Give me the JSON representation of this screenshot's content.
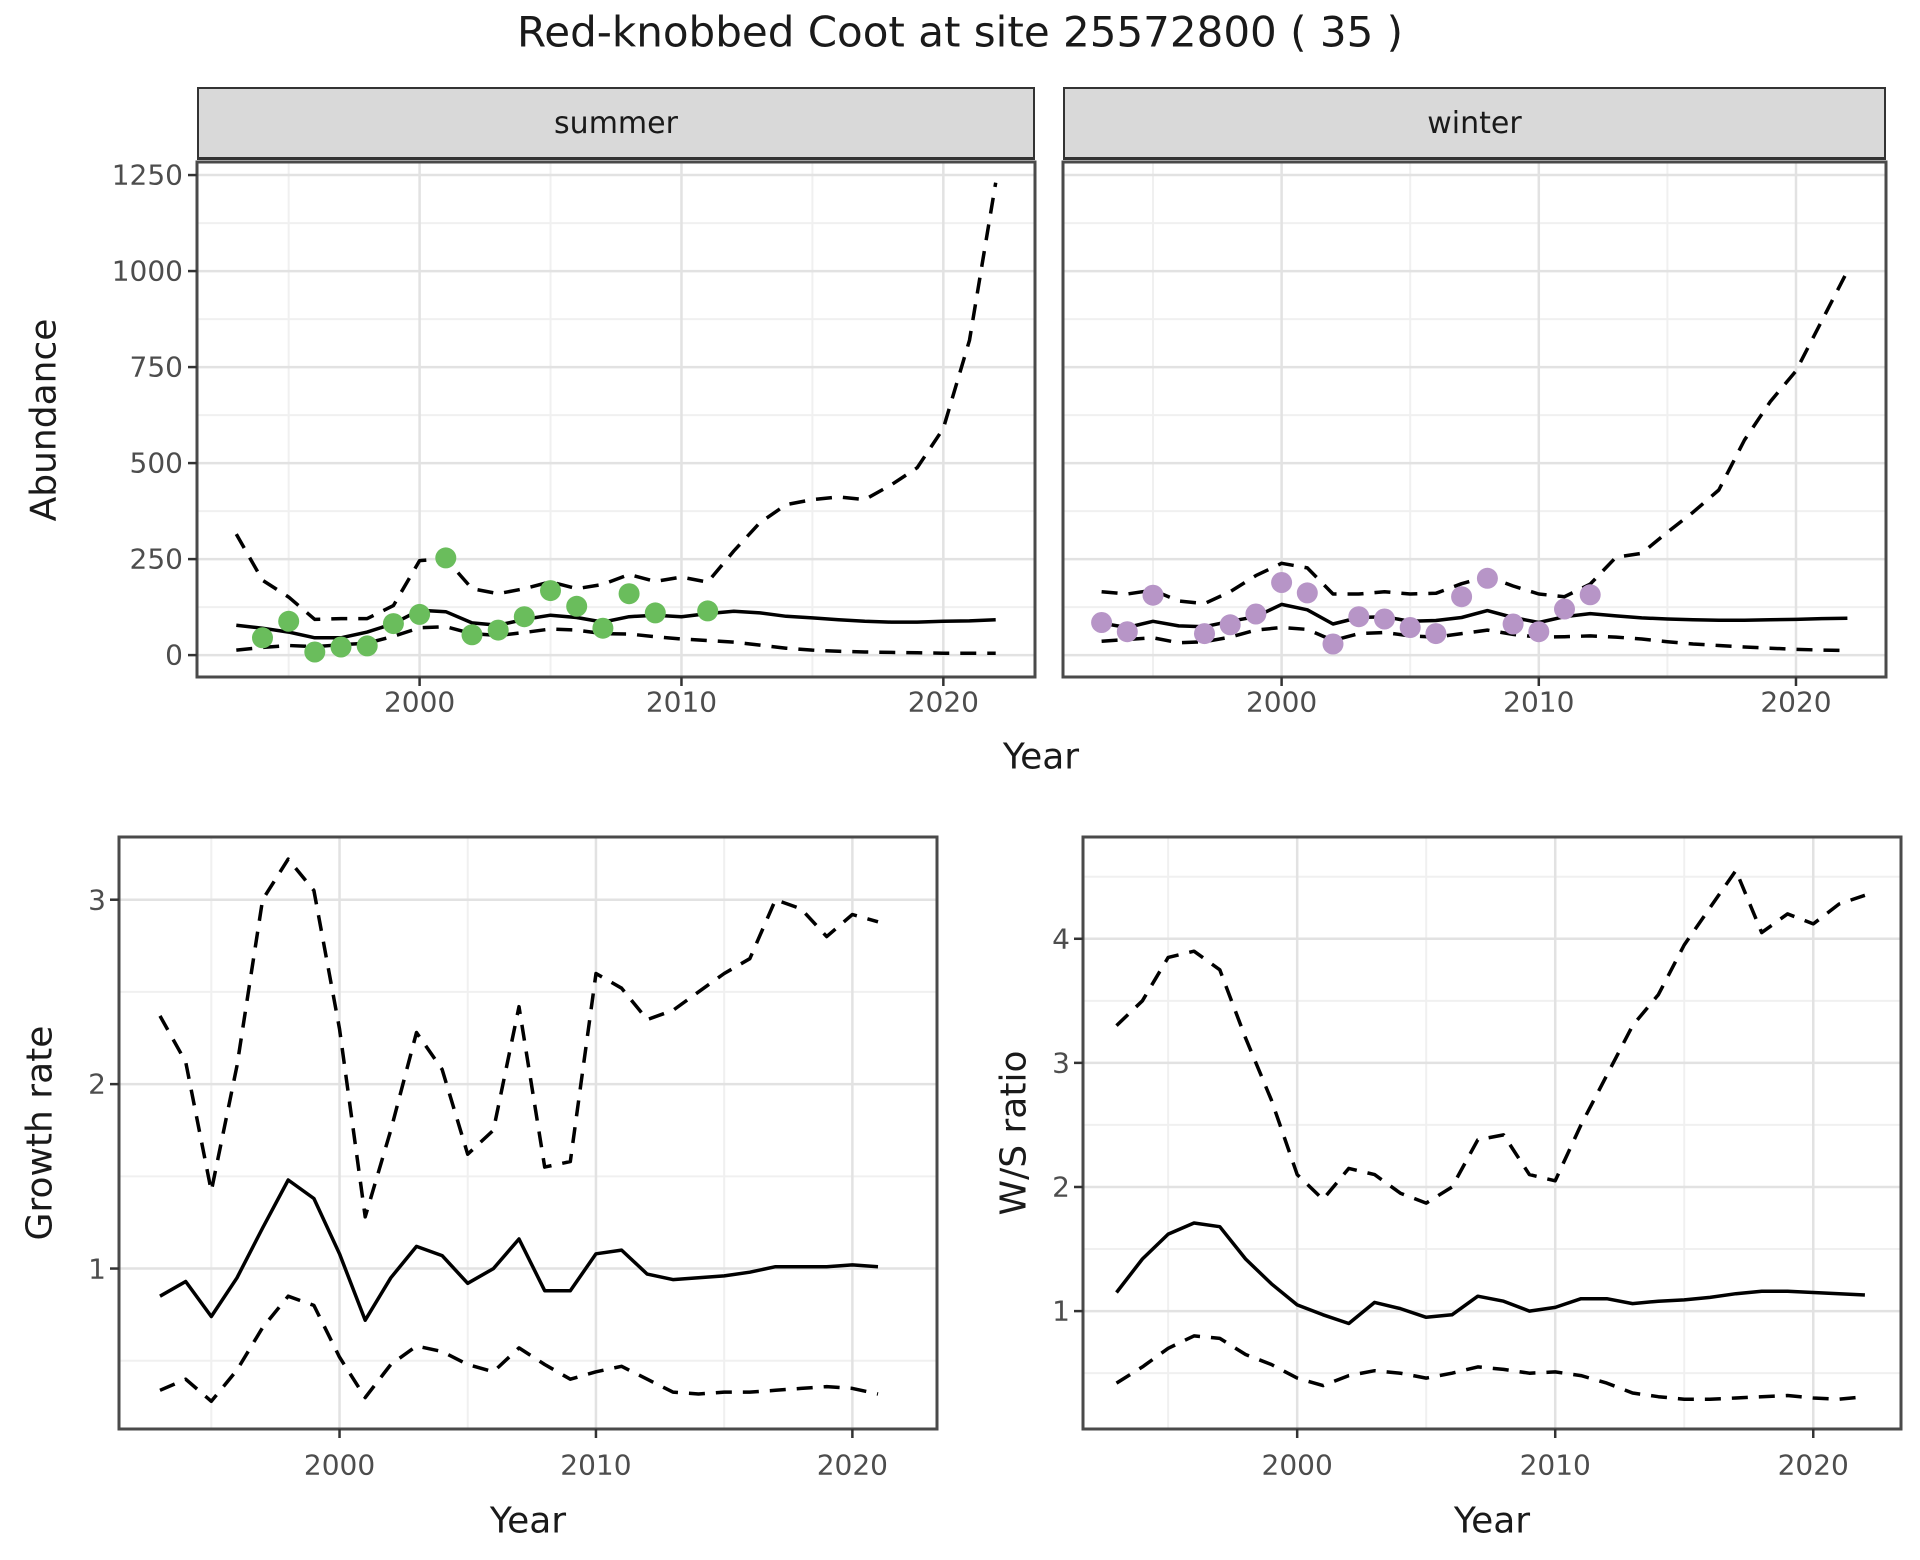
{
  "title": "Red-knobbed Coot at site 25572800 ( 35 )",
  "labels": {
    "year": "Year",
    "abundance": "Abundance",
    "growth": "Growth rate",
    "ws": "W/S ratio"
  },
  "facets": [
    "summer",
    "winter"
  ],
  "colors": {
    "summer_points": "#6ABD5C",
    "winter_points": "#B795C7",
    "line": "#000000",
    "strip_fill": "#D9D9D9",
    "grid_major": "#E2E2E2",
    "grid_minor": "#F0F0F0",
    "panel_border": "#4A4A4A",
    "tick_text": "#4D4D4D",
    "title_text": "#1A1A1A"
  },
  "chart_data": [
    {
      "id": "abundance-summer",
      "type": "line",
      "facet": "summer",
      "ylabel": "Abundance",
      "xlabel": "Year",
      "xlim": [
        1991.5,
        2023.5
      ],
      "ylim": [
        -57,
        1284
      ],
      "xticks": [
        2000,
        2010,
        2020
      ],
      "xticks_minor": [
        1995,
        2005,
        2015
      ],
      "yticks": [
        0,
        250,
        500,
        750,
        1000,
        1250
      ],
      "yticks_minor": [
        125,
        375,
        625,
        875,
        1125
      ],
      "x": [
        1993,
        1994,
        1995,
        1996,
        1997,
        1998,
        1999,
        2000,
        2001,
        2002,
        2003,
        2004,
        2005,
        2006,
        2007,
        2008,
        2009,
        2010,
        2011,
        2012,
        2013,
        2014,
        2015,
        2016,
        2017,
        2018,
        2019,
        2020,
        2021,
        2022
      ],
      "series": [
        {
          "name": "median",
          "style": "solid",
          "values": [
            78,
            70,
            60,
            45,
            45,
            60,
            82,
            117,
            113,
            84,
            78,
            93,
            104,
            98,
            86,
            100,
            104,
            100,
            108,
            114,
            110,
            101,
            97,
            92,
            88,
            86,
            86,
            88,
            89,
            92
          ]
        },
        {
          "name": "upper_ci",
          "style": "dashed",
          "values": [
            315,
            195,
            151,
            93,
            95,
            95,
            129,
            246,
            251,
            173,
            160,
            173,
            191,
            173,
            184,
            210,
            192,
            203,
            190,
            271,
            345,
            392,
            405,
            412,
            405,
            443,
            488,
            590,
            820,
            1230
          ]
        },
        {
          "name": "lower_ci",
          "style": "dashed",
          "values": [
            13,
            20,
            25,
            22,
            27,
            31,
            49,
            71,
            74,
            56,
            51,
            59,
            68,
            65,
            56,
            55,
            48,
            42,
            38,
            34,
            26,
            18,
            13,
            10,
            8,
            7,
            6,
            5,
            5,
            5
          ]
        }
      ],
      "points": {
        "color_key": "summer_points",
        "x": [
          1994,
          1995,
          1996,
          1997,
          1998,
          1999,
          2000,
          2001,
          2002,
          2003,
          2004,
          2005,
          2006,
          2007,
          2008,
          2009,
          2011
        ],
        "y": [
          45,
          88,
          8,
          21,
          24,
          82,
          106,
          253,
          53,
          65,
          100,
          168,
          127,
          70,
          160,
          110,
          115
        ]
      }
    },
    {
      "id": "abundance-winter",
      "type": "line",
      "facet": "winter",
      "ylabel": "Abundance",
      "xlabel": "Year",
      "xlim": [
        1991.5,
        2023.5
      ],
      "ylim": [
        -57,
        1284
      ],
      "xticks": [
        2000,
        2010,
        2020
      ],
      "xticks_minor": [
        1995,
        2005,
        2015
      ],
      "yticks": [
        0,
        250,
        500,
        750,
        1000,
        1250
      ],
      "yticks_minor": [
        125,
        375,
        625,
        875,
        1125
      ],
      "x": [
        1993,
        1994,
        1995,
        1996,
        1997,
        1998,
        1999,
        2000,
        2001,
        2002,
        2003,
        2004,
        2005,
        2006,
        2007,
        2008,
        2009,
        2010,
        2011,
        2012,
        2013,
        2014,
        2015,
        2016,
        2017,
        2018,
        2019,
        2020,
        2021,
        2022
      ],
      "series": [
        {
          "name": "median",
          "style": "solid",
          "values": [
            83,
            72,
            88,
            76,
            74,
            88,
            100,
            132,
            118,
            81,
            98,
            100,
            88,
            90,
            98,
            116,
            98,
            85,
            100,
            108,
            102,
            97,
            94,
            92,
            91,
            91,
            92,
            93,
            95,
            96
          ]
        },
        {
          "name": "upper_ci",
          "style": "dashed",
          "values": [
            165,
            159,
            169,
            141,
            134,
            165,
            207,
            239,
            227,
            159,
            159,
            165,
            159,
            161,
            186,
            205,
            180,
            159,
            152,
            185,
            255,
            265,
            320,
            372,
            430,
            560,
            660,
            740,
            870,
            1000
          ]
        },
        {
          "name": "lower_ci",
          "style": "dashed",
          "values": [
            36,
            41,
            45,
            32,
            35,
            47,
            65,
            72,
            67,
            38,
            56,
            59,
            50,
            47,
            56,
            65,
            54,
            47,
            48,
            50,
            47,
            42,
            35,
            29,
            25,
            21,
            18,
            15,
            13,
            12
          ]
        }
      ],
      "points": {
        "color_key": "winter_points",
        "x": [
          1993,
          1994,
          1995,
          1997,
          1998,
          1999,
          2000,
          2001,
          2002,
          2003,
          2004,
          2005,
          2006,
          2007,
          2008,
          2009,
          2010,
          2011,
          2012
        ],
        "y": [
          85,
          61,
          156,
          56,
          79,
          107,
          189,
          162,
          29,
          100,
          94,
          72,
          56,
          152,
          200,
          81,
          61,
          120,
          157
        ]
      }
    },
    {
      "id": "growth-rate",
      "type": "line",
      "facet": null,
      "ylabel": "Growth rate",
      "xlabel": "Year",
      "xlim": [
        1991.4,
        2023.3
      ],
      "ylim": [
        0.13,
        3.34
      ],
      "xticks": [
        2000,
        2010,
        2020
      ],
      "xticks_minor": [
        1995,
        2005,
        2015
      ],
      "yticks": [
        1,
        2,
        3
      ],
      "yticks_minor": [
        0.5,
        1.5,
        2.5
      ],
      "x": [
        1993,
        1994,
        1995,
        1996,
        1997,
        1998,
        1999,
        2000,
        2001,
        2002,
        2003,
        2004,
        2005,
        2006,
        2007,
        2008,
        2009,
        2010,
        2011,
        2012,
        2013,
        2014,
        2015,
        2016,
        2017,
        2018,
        2019,
        2020,
        2021
      ],
      "series": [
        {
          "name": "median",
          "style": "solid",
          "values": [
            0.85,
            0.93,
            0.74,
            0.95,
            1.22,
            1.48,
            1.38,
            1.08,
            0.72,
            0.95,
            1.12,
            1.07,
            0.92,
            1.0,
            1.16,
            0.88,
            0.88,
            1.08,
            1.1,
            0.97,
            0.94,
            0.95,
            0.96,
            0.98,
            1.01,
            1.01,
            1.01,
            1.02,
            1.01
          ]
        },
        {
          "name": "upper_ci",
          "style": "dashed",
          "values": [
            2.37,
            2.12,
            1.42,
            2.1,
            3.0,
            3.22,
            3.05,
            2.3,
            1.28,
            1.75,
            2.28,
            2.08,
            1.62,
            1.75,
            2.42,
            1.55,
            1.58,
            2.6,
            2.52,
            2.35,
            2.4,
            2.5,
            2.6,
            2.68,
            3.0,
            2.95,
            2.8,
            2.92,
            2.88
          ]
        },
        {
          "name": "lower_ci",
          "style": "dashed",
          "values": [
            0.34,
            0.4,
            0.28,
            0.45,
            0.68,
            0.85,
            0.8,
            0.52,
            0.3,
            0.48,
            0.58,
            0.55,
            0.48,
            0.44,
            0.57,
            0.48,
            0.4,
            0.44,
            0.47,
            0.4,
            0.33,
            0.32,
            0.33,
            0.33,
            0.34,
            0.35,
            0.36,
            0.35,
            0.32
          ]
        }
      ],
      "points": null
    },
    {
      "id": "ws-ratio",
      "type": "line",
      "facet": null,
      "ylabel": "W/S ratio",
      "xlabel": "Year",
      "xlim": [
        1991.7,
        2023.4
      ],
      "ylim": [
        0.05,
        4.82
      ],
      "xticks": [
        2000,
        2010,
        2020
      ],
      "xticks_minor": [
        1995,
        2005,
        2015
      ],
      "yticks": [
        1,
        2,
        3,
        4
      ],
      "yticks_minor": [
        0.5,
        1.5,
        2.5,
        3.5,
        4.5
      ],
      "x": [
        1993,
        1994,
        1995,
        1996,
        1997,
        1998,
        1999,
        2000,
        2001,
        2002,
        2003,
        2004,
        2005,
        2006,
        2007,
        2008,
        2009,
        2010,
        2011,
        2012,
        2013,
        2014,
        2015,
        2016,
        2017,
        2018,
        2019,
        2020,
        2021,
        2022
      ],
      "series": [
        {
          "name": "median",
          "style": "solid",
          "values": [
            1.15,
            1.42,
            1.62,
            1.71,
            1.68,
            1.42,
            1.22,
            1.05,
            0.97,
            0.9,
            1.07,
            1.02,
            0.95,
            0.97,
            1.12,
            1.08,
            1.0,
            1.03,
            1.1,
            1.1,
            1.06,
            1.08,
            1.09,
            1.11,
            1.14,
            1.16,
            1.16,
            1.15,
            1.14,
            1.13
          ]
        },
        {
          "name": "upper_ci",
          "style": "dashed",
          "values": [
            3.3,
            3.5,
            3.85,
            3.9,
            3.75,
            3.2,
            2.7,
            2.1,
            1.9,
            2.15,
            2.1,
            1.95,
            1.87,
            2.0,
            2.38,
            2.42,
            2.1,
            2.05,
            2.5,
            2.9,
            3.3,
            3.55,
            3.95,
            4.25,
            4.55,
            4.05,
            4.2,
            4.12,
            4.28,
            4.35
          ]
        },
        {
          "name": "lower_ci",
          "style": "dashed",
          "values": [
            0.42,
            0.55,
            0.7,
            0.8,
            0.78,
            0.65,
            0.57,
            0.46,
            0.4,
            0.48,
            0.52,
            0.5,
            0.46,
            0.5,
            0.55,
            0.53,
            0.5,
            0.51,
            0.48,
            0.42,
            0.34,
            0.31,
            0.29,
            0.29,
            0.3,
            0.31,
            0.32,
            0.3,
            0.29,
            0.31
          ]
        }
      ],
      "points": null
    }
  ]
}
